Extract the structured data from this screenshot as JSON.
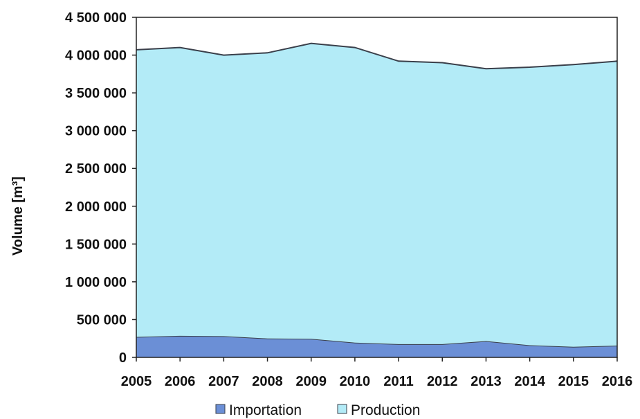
{
  "chart_data": {
    "type": "area",
    "stacked": true,
    "title": "",
    "xlabel": "",
    "ylabel": "Volume [m³]",
    "x": [
      "2005",
      "2006",
      "2007",
      "2008",
      "2009",
      "2010",
      "2011",
      "2012",
      "2013",
      "2014",
      "2015",
      "2016"
    ],
    "ylim": [
      0,
      4500000
    ],
    "yticks": [
      0,
      500000,
      1000000,
      1500000,
      2000000,
      2500000,
      3000000,
      3500000,
      4000000,
      4500000
    ],
    "ytick_labels": [
      "0",
      "500 000",
      "1 000 000",
      "1 500 000",
      "2 000 000",
      "2 500 000",
      "3 000 000",
      "3 500 000",
      "4 000 000",
      "4 500 000"
    ],
    "grid": false,
    "legend_position": "bottom",
    "series": [
      {
        "name": "Importation",
        "color": "#6b8fd6",
        "values": [
          270000,
          285000,
          280000,
          250000,
          245000,
          195000,
          175000,
          175000,
          215000,
          160000,
          140000,
          155000
        ]
      },
      {
        "name": "Production",
        "color": "#b3ebf7",
        "values": [
          3800000,
          3815000,
          3720000,
          3780000,
          3910000,
          3905000,
          3745000,
          3725000,
          3605000,
          3680000,
          3735000,
          3765000
        ]
      }
    ]
  }
}
